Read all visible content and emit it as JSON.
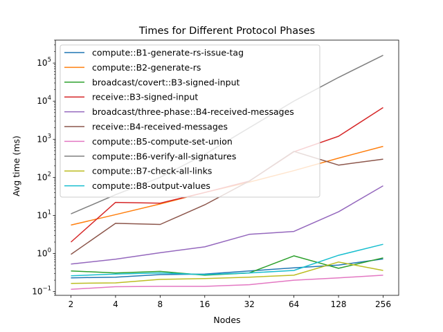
{
  "chart_data": {
    "type": "line",
    "title": "Times for Different Protocol Phases",
    "xlabel": "Nodes",
    "ylabel": "Avg time (ms)",
    "yscale": "log",
    "ylim": [
      0.08,
      400000
    ],
    "legend_position": "top-left",
    "grid": false,
    "categories": [
      "2",
      "4",
      "8",
      "16",
      "32",
      "64",
      "128",
      "256"
    ],
    "y_ticks": [
      {
        "exp": "−1",
        "value": 0.1
      },
      {
        "exp": "0",
        "value": 1
      },
      {
        "exp": "1",
        "value": 10
      },
      {
        "exp": "2",
        "value": 100
      },
      {
        "exp": "3",
        "value": 1000
      },
      {
        "exp": "4",
        "value": 10000
      },
      {
        "exp": "5",
        "value": 100000
      }
    ],
    "series": [
      {
        "name": "compute::B1-generate-rs-issue-tag",
        "color": "#1f77b4",
        "values": [
          0.23,
          0.24,
          0.28,
          0.29,
          0.35,
          0.42,
          0.5,
          0.72
        ]
      },
      {
        "name": "compute::B2-generate-rs",
        "color": "#ff7f0e",
        "values": [
          5.6,
          10.5,
          20,
          40,
          75,
          150,
          320,
          650
        ]
      },
      {
        "name": "broadcast/covert::B3-signed-input",
        "color": "#2ca02c",
        "values": [
          0.35,
          0.31,
          0.34,
          0.27,
          0.31,
          0.87,
          0.41,
          0.77
        ]
      },
      {
        "name": "receive::B3-signed-input",
        "color": "#d62728",
        "values": [
          2.0,
          22,
          21,
          40,
          80,
          470,
          1200,
          6800
        ]
      },
      {
        "name": "broadcast/three-phase::B4-received-messages",
        "color": "#9467bd",
        "values": [
          0.53,
          0.71,
          1.05,
          1.5,
          3.2,
          3.8,
          12.5,
          60
        ]
      },
      {
        "name": "receive::B4-received-messages",
        "color": "#8c564b",
        "values": [
          0.95,
          6.2,
          5.8,
          19,
          80,
          480,
          210,
          300
        ]
      },
      {
        "name": "compute::B5-compute-set-union",
        "color": "#e377c2",
        "values": [
          0.115,
          0.135,
          0.138,
          0.138,
          0.152,
          0.2,
          0.23,
          0.27
        ]
      },
      {
        "name": "compute::B6-verify-all-signatures",
        "color": "#7f7f7f",
        "values": [
          11,
          35,
          100,
          400,
          2000,
          10000,
          42000,
          160000
        ]
      },
      {
        "name": "compute::B7-check-all-links",
        "color": "#bcbd22",
        "values": [
          0.165,
          0.17,
          0.21,
          0.22,
          0.24,
          0.27,
          0.6,
          0.36
        ]
      },
      {
        "name": "compute::B8-output-values",
        "color": "#17becf",
        "values": [
          0.26,
          0.29,
          0.31,
          0.28,
          0.31,
          0.36,
          0.9,
          1.75
        ]
      }
    ]
  }
}
